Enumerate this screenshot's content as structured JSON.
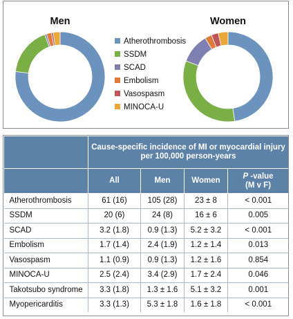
{
  "colors": {
    "atherothrombosis": "#6b93bd",
    "ssdm": "#79af45",
    "scad": "#7f7fb2",
    "embolism": "#e07b3a",
    "vasospasm": "#c0565a",
    "minoca_u": "#eba737",
    "header_bg": "#5c82a8"
  },
  "chart_data": [
    {
      "type": "pie",
      "title": "Men",
      "categories": [
        "Atherothrombosis",
        "SSDM",
        "SCAD",
        "Embolism",
        "Vasospasm",
        "MINOCA-U"
      ],
      "values": [
        105,
        24,
        0.9,
        2.4,
        0.9,
        3.4
      ]
    },
    {
      "type": "pie",
      "title": "Women",
      "categories": [
        "Atherothrombosis",
        "SSDM",
        "SCAD",
        "Embolism",
        "Vasospasm",
        "MINOCA-U"
      ],
      "values": [
        23,
        16,
        5.2,
        1.2,
        1.2,
        1.7
      ]
    }
  ],
  "legend": [
    "Atherothrombosis",
    "SSDM",
    "SCAD",
    "Embolism",
    "Vasospasm",
    "MINOCA-U"
  ],
  "table": {
    "group_header": "Cause-specific incidence of MI or myocardial injury per 100,000 person-years",
    "columns": [
      "All",
      "Men",
      "Women"
    ],
    "pvalue_prefix": "P",
    "pvalue_suffix": " -value",
    "pvalue_sub": "(M v F)",
    "rows": [
      {
        "label": "Atherothrombosis",
        "all": "61 (16)",
        "men": "105 (28)",
        "women": "23 ± 8",
        "p": "< 0.001"
      },
      {
        "label": "SSDM",
        "all": "20 (6)",
        "men": "24 (8)",
        "women": "16 ± 6",
        "p": "0.005"
      },
      {
        "label": "SCAD",
        "all": "3.2 (1.8)",
        "men": "0.9 (1.3)",
        "women": "5.2 ± 3.2",
        "p": "< 0.001"
      },
      {
        "label": "Embolism",
        "all": "1.7 (1.4)",
        "men": "2.4 (1.9)",
        "women": "1.2 ± 1.4",
        "p": "0.013"
      },
      {
        "label": "Vasospasm",
        "all": "1.1 (0.9)",
        "men": "0.9 (1.3)",
        "women": "1.2 ± 1.6",
        "p": "0.854"
      },
      {
        "label": "MINOCA-U",
        "all": "2.5 (2.4)",
        "men": "3.4 (2.9)",
        "women": "1.7 ± 2.4",
        "p": "0.046"
      },
      {
        "label": "Takotsubo syndrome",
        "all": "3.3 (1.8)",
        "men": "1.3 ± 1.6",
        "women": "5.1 ± 3.2",
        "p": "0.001"
      },
      {
        "label": "Myopericarditis",
        "all": "3.3 (1.3)",
        "men": "5.3 ± 1.8",
        "women": "1.6 ± 1.8",
        "p": "< 0.001"
      }
    ]
  }
}
